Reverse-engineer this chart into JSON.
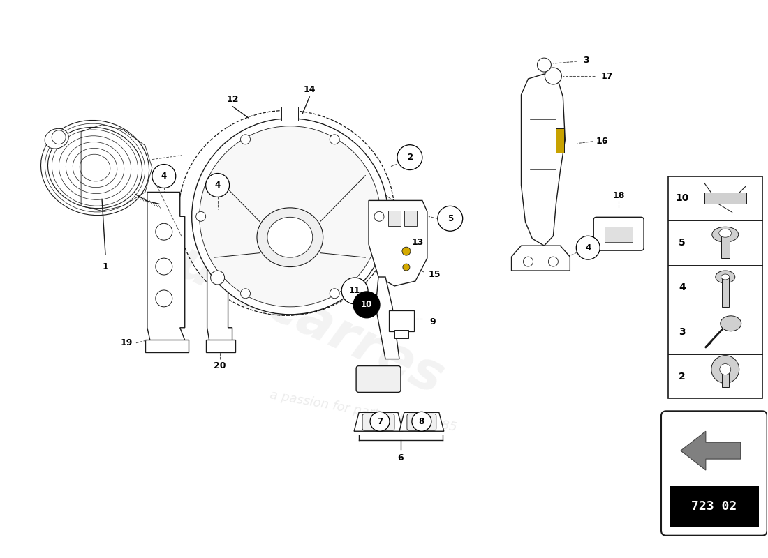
{
  "background_color": "#ffffff",
  "watermark_text": "eurocarres",
  "watermark_subtext": "a passion for parts since 1985",
  "part_number": "723 02",
  "figure_size": [
    11.0,
    8.0
  ],
  "dpi": 100,
  "line_color": "#1a1a1a",
  "line_width": 1.0,
  "sidebar_items": [
    {
      "num": "10",
      "type": "clip"
    },
    {
      "num": "5",
      "type": "bolt_flat"
    },
    {
      "num": "4",
      "type": "bolt_long"
    },
    {
      "num": "3",
      "type": "key_bolt"
    },
    {
      "num": "2",
      "type": "bolt_round"
    }
  ]
}
